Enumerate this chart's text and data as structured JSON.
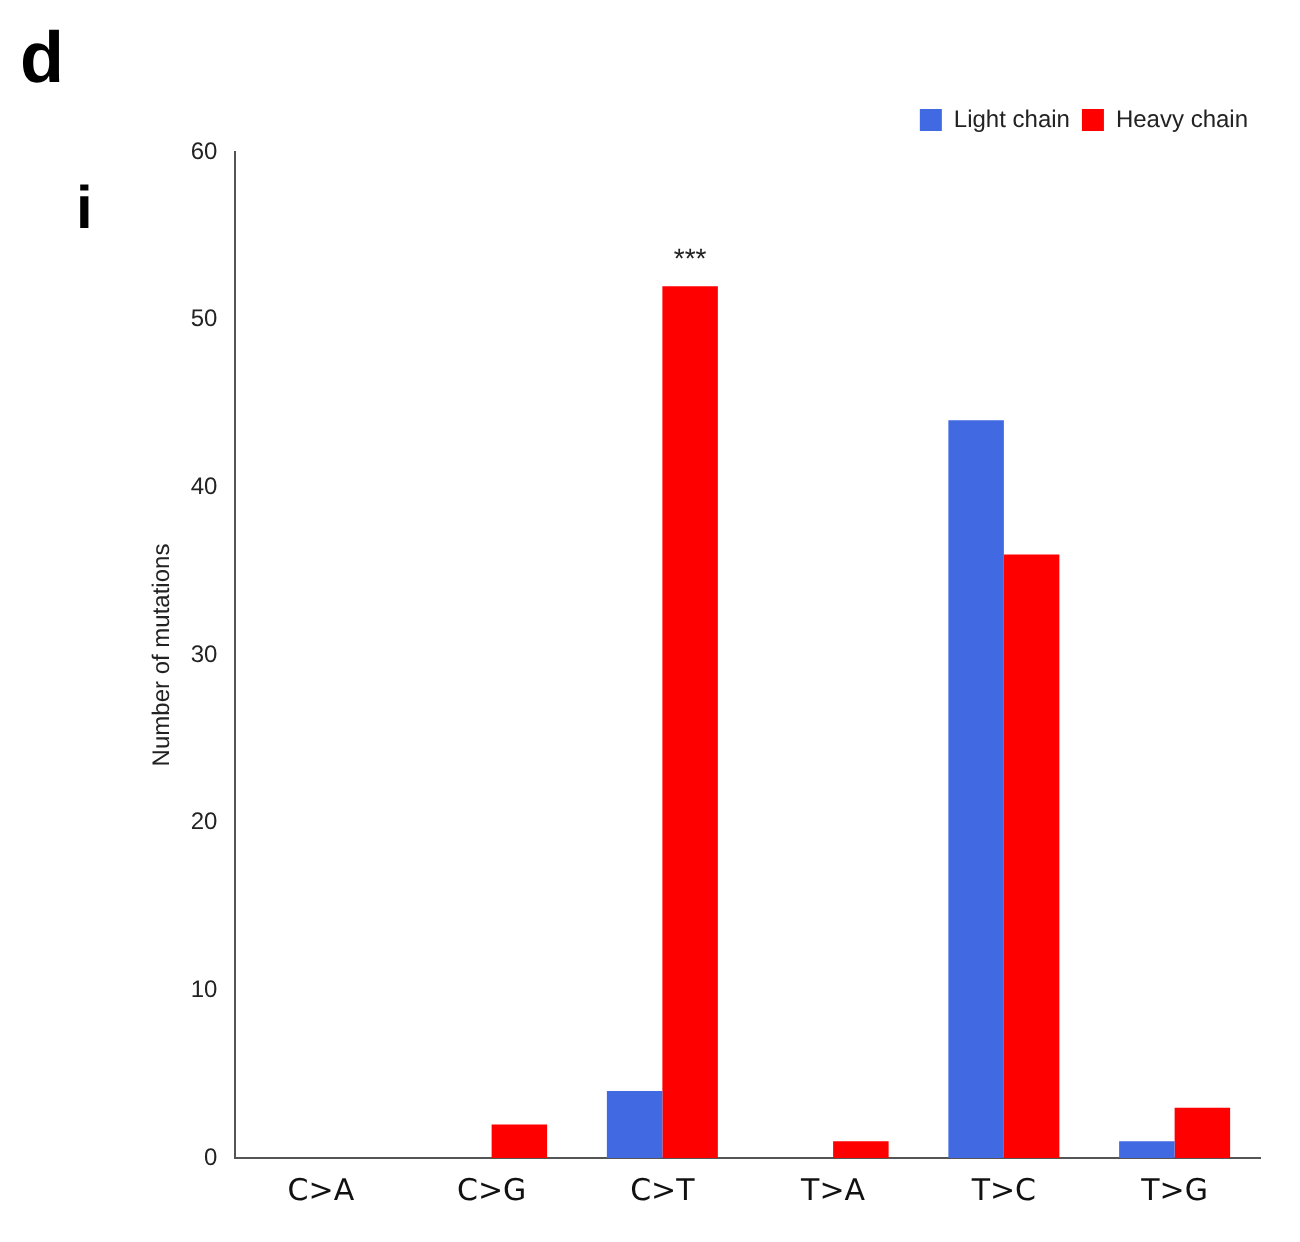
{
  "chart_data": {
    "type": "bar",
    "ylabel": "Number of mutations",
    "categories": [
      "C>A",
      "C>G",
      "C>T",
      "T>A",
      "T>C",
      "T>G"
    ],
    "series": [
      {
        "name": "Light chain",
        "color": "#4169e1",
        "values": [
          0,
          0,
          4,
          0,
          44,
          1
        ]
      },
      {
        "name": "Heavy chain",
        "color": "#ff0000",
        "values": [
          0,
          2,
          52,
          1,
          36,
          3
        ]
      }
    ],
    "ylim": [
      0,
      60
    ],
    "yticks": [
      0,
      10,
      20,
      30,
      40,
      50,
      60
    ],
    "grid": false,
    "legend": "top right",
    "annotations": [
      "d",
      "i",
      {
        "text": "***",
        "x": "C>T",
        "y": 52
      }
    ]
  }
}
